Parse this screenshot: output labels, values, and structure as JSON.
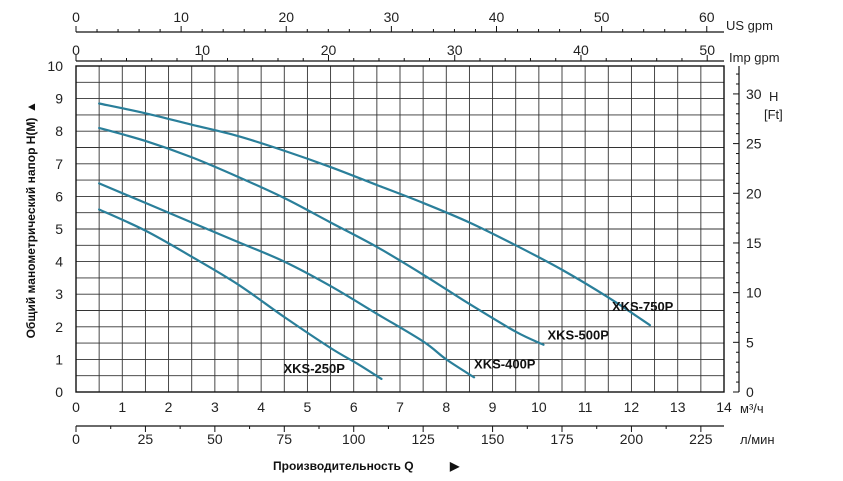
{
  "chart_data": {
    "type": "line",
    "x_unit": "м³/ч",
    "y_label": "Общий манометрический напор  H(M)",
    "y_arrow": "▲",
    "x_title": "Производительность Q",
    "x_arrow": "▶",
    "xlim": [
      0,
      14
    ],
    "ylim": [
      0,
      10
    ],
    "x_ticks": [
      "0",
      "1",
      "2",
      "3",
      "4",
      "5",
      "6",
      "7",
      "8",
      "9",
      "10",
      "11",
      "12",
      "13",
      "14"
    ],
    "y_ticks": [
      "0",
      "1",
      "2",
      "3",
      "4",
      "5",
      "6",
      "7",
      "8",
      "9",
      "10"
    ],
    "grid": true,
    "line_color": "#2a7f9a",
    "extra_axes": {
      "lmin": {
        "unit": "л/мин",
        "ticks": [
          "0",
          "25",
          "50",
          "75",
          "100",
          "125",
          "150",
          "175",
          "200",
          "225"
        ],
        "max": 233.33
      },
      "us_gpm": {
        "unit": "US  gpm",
        "ticks": [
          "0",
          "10",
          "20",
          "30",
          "40",
          "50",
          "60"
        ],
        "max": 61.64
      },
      "imp_gpm": {
        "unit": "Imp gpm",
        "ticks": [
          "0",
          "10",
          "20",
          "30",
          "40",
          "50"
        ],
        "max": 51.33
      },
      "ft": {
        "unit": "H",
        "unit2": "[Ft]",
        "ticks": [
          "0",
          "5",
          "10",
          "15",
          "20",
          "25",
          "30"
        ],
        "max": 32.81
      }
    },
    "series": [
      {
        "name": "XKS-750P",
        "x": [
          0.5,
          1.5,
          2.5,
          3.5,
          4.5,
          5.5,
          6.5,
          7.5,
          8.5,
          9.5,
          10.5,
          11.5,
          12.4
        ],
        "y": [
          8.85,
          8.55,
          8.2,
          7.85,
          7.4,
          6.9,
          6.35,
          5.8,
          5.2,
          4.5,
          3.75,
          2.9,
          2.05
        ]
      },
      {
        "name": "XKS-500P",
        "x": [
          0.5,
          1.5,
          2.5,
          3.5,
          4.5,
          5.5,
          6.5,
          7.5,
          8.5,
          9.5,
          10.1
        ],
        "y": [
          8.1,
          7.7,
          7.2,
          6.6,
          5.95,
          5.2,
          4.45,
          3.6,
          2.7,
          1.85,
          1.45
        ]
      },
      {
        "name": "XKS-400P",
        "x": [
          0.5,
          1.5,
          2.5,
          3.5,
          4.5,
          5.5,
          6.5,
          7.5,
          8.0,
          8.6
        ],
        "y": [
          6.4,
          5.8,
          5.2,
          4.6,
          4.0,
          3.25,
          2.4,
          1.55,
          1.0,
          0.45
        ]
      },
      {
        "name": "XKS-250P",
        "x": [
          0.5,
          1.5,
          2.5,
          3.5,
          4.5,
          5.5,
          6.1,
          6.6
        ],
        "y": [
          5.6,
          4.95,
          4.15,
          3.3,
          2.3,
          1.35,
          0.85,
          0.4
        ]
      }
    ]
  }
}
